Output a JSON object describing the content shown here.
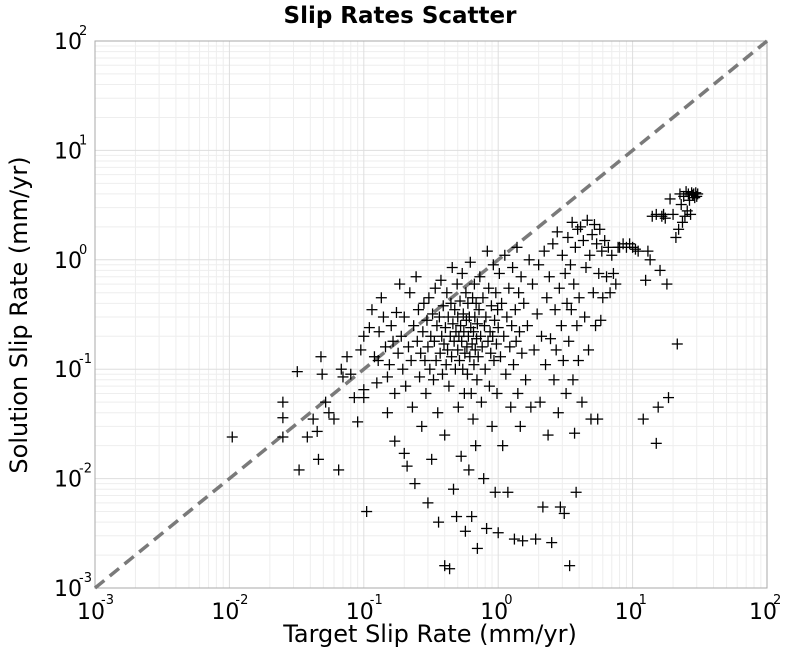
{
  "chart_data": {
    "type": "scatter",
    "title": "Slip Rates Scatter",
    "xlabel": "Target Slip Rate (mm/yr)",
    "ylabel": "Solution Slip Rate (mm/yr)",
    "xscale": "log",
    "yscale": "log",
    "xlim": [
      0.001,
      100
    ],
    "ylim": [
      0.001,
      100
    ],
    "grid": true,
    "marker": "+",
    "marker_color": "#000000",
    "reference_line": {
      "style": "dashed",
      "color": "#7a7a7a",
      "from": [
        0.001,
        0.001
      ],
      "to": [
        100,
        100
      ]
    },
    "x_ticks": [
      {
        "base": "10",
        "exp": "-3"
      },
      {
        "base": "10",
        "exp": "-2"
      },
      {
        "base": "10",
        "exp": "-1"
      },
      {
        "base": "10",
        "exp": "0"
      },
      {
        "base": "10",
        "exp": "1"
      },
      {
        "base": "10",
        "exp": "2"
      }
    ],
    "y_ticks": [
      {
        "base": "10",
        "exp": "-3"
      },
      {
        "base": "10",
        "exp": "-2"
      },
      {
        "base": "10",
        "exp": "-1"
      },
      {
        "base": "10",
        "exp": "0"
      },
      {
        "base": "10",
        "exp": "1"
      },
      {
        "base": "10",
        "exp": "2"
      }
    ],
    "points": [
      [
        0.0105,
        0.024
      ],
      [
        0.025,
        0.05
      ],
      [
        0.025,
        0.036
      ],
      [
        0.025,
        0.024
      ],
      [
        0.032,
        0.095
      ],
      [
        0.033,
        0.012
      ],
      [
        0.038,
        0.024
      ],
      [
        0.042,
        0.035
      ],
      [
        0.045,
        0.027
      ],
      [
        0.046,
        0.015
      ],
      [
        0.048,
        0.13
      ],
      [
        0.049,
        0.09
      ],
      [
        0.052,
        0.05
      ],
      [
        0.055,
        0.04
      ],
      [
        0.06,
        0.035
      ],
      [
        0.065,
        0.012
      ],
      [
        0.068,
        0.1
      ],
      [
        0.07,
        0.085
      ],
      [
        0.075,
        0.13
      ],
      [
        0.08,
        0.09
      ],
      [
        0.085,
        0.055
      ],
      [
        0.09,
        0.033
      ],
      [
        0.095,
        0.15
      ],
      [
        0.1,
        0.065
      ],
      [
        0.1,
        0.2
      ],
      [
        0.1,
        0.055
      ],
      [
        0.105,
        0.005
      ],
      [
        0.11,
        0.24
      ],
      [
        0.115,
        0.35
      ],
      [
        0.12,
        0.13
      ],
      [
        0.125,
        0.075
      ],
      [
        0.128,
        0.12
      ],
      [
        0.13,
        0.22
      ],
      [
        0.135,
        0.45
      ],
      [
        0.14,
        0.3
      ],
      [
        0.145,
        0.16
      ],
      [
        0.15,
        0.085
      ],
      [
        0.15,
        0.04
      ],
      [
        0.155,
        0.11
      ],
      [
        0.16,
        0.25
      ],
      [
        0.165,
        0.18
      ],
      [
        0.17,
        0.06
      ],
      [
        0.17,
        0.022
      ],
      [
        0.175,
        0.33
      ],
      [
        0.18,
        0.14
      ],
      [
        0.185,
        0.6
      ],
      [
        0.19,
        0.2
      ],
      [
        0.195,
        0.1
      ],
      [
        0.2,
        0.017
      ],
      [
        0.2,
        0.3
      ],
      [
        0.205,
        0.07
      ],
      [
        0.21,
        0.013
      ],
      [
        0.215,
        0.16
      ],
      [
        0.22,
        0.5
      ],
      [
        0.225,
        0.12
      ],
      [
        0.23,
        0.045
      ],
      [
        0.235,
        0.25
      ],
      [
        0.24,
        0.009
      ],
      [
        0.245,
        0.7
      ],
      [
        0.25,
        0.18
      ],
      [
        0.255,
        0.35
      ],
      [
        0.26,
        0.085
      ],
      [
        0.265,
        0.14
      ],
      [
        0.27,
        0.03
      ],
      [
        0.275,
        0.22
      ],
      [
        0.28,
        0.4
      ],
      [
        0.285,
        0.12
      ],
      [
        0.29,
        0.06
      ],
      [
        0.295,
        0.28
      ],
      [
        0.3,
        0.006
      ],
      [
        0.3,
        0.16
      ],
      [
        0.305,
        0.45
      ],
      [
        0.31,
        0.1
      ],
      [
        0.315,
        0.2
      ],
      [
        0.32,
        0.015
      ],
      [
        0.325,
        0.32
      ],
      [
        0.33,
        0.08
      ],
      [
        0.335,
        0.18
      ],
      [
        0.34,
        0.55
      ],
      [
        0.345,
        0.12
      ],
      [
        0.35,
        0.25
      ],
      [
        0.355,
        0.04
      ],
      [
        0.36,
        0.004
      ],
      [
        0.365,
        0.3
      ],
      [
        0.37,
        0.14
      ],
      [
        0.375,
        0.65
      ],
      [
        0.38,
        0.2
      ],
      [
        0.385,
        0.09
      ],
      [
        0.39,
        0.38
      ],
      [
        0.395,
        0.17
      ],
      [
        0.4,
        0.025
      ],
      [
        0.4,
        0.0016
      ],
      [
        0.405,
        0.24
      ],
      [
        0.41,
        0.11
      ],
      [
        0.415,
        0.5
      ],
      [
        0.42,
        0.15
      ],
      [
        0.425,
        0.3
      ],
      [
        0.43,
        0.07
      ],
      [
        0.435,
        0.0015
      ],
      [
        0.44,
        0.2
      ],
      [
        0.445,
        0.4
      ],
      [
        0.45,
        0.13
      ],
      [
        0.455,
        0.85
      ],
      [
        0.46,
        0.26
      ],
      [
        0.465,
        0.008
      ],
      [
        0.47,
        0.18
      ],
      [
        0.475,
        0.35
      ],
      [
        0.48,
        0.1
      ],
      [
        0.485,
        0.22
      ],
      [
        0.49,
        0.0045
      ],
      [
        0.495,
        0.6
      ],
      [
        0.5,
        0.15
      ],
      [
        0.5,
        0.3
      ],
      [
        0.505,
        0.045
      ],
      [
        0.51,
        0.2
      ],
      [
        0.515,
        0.12
      ],
      [
        0.52,
        0.42
      ],
      [
        0.525,
        0.25
      ],
      [
        0.53,
        0.016
      ],
      [
        0.535,
        0.18
      ],
      [
        0.54,
        0.75
      ],
      [
        0.545,
        0.1
      ],
      [
        0.55,
        0.32
      ],
      [
        0.555,
        0.22
      ],
      [
        0.56,
        0.06
      ],
      [
        0.565,
        0.14
      ],
      [
        0.57,
        0.0033
      ],
      [
        0.575,
        0.5
      ],
      [
        0.58,
        0.28
      ],
      [
        0.585,
        0.16
      ],
      [
        0.59,
        0.09
      ],
      [
        0.595,
        0.4
      ],
      [
        0.6,
        0.2
      ],
      [
        0.605,
        0.012
      ],
      [
        0.61,
        0.3
      ],
      [
        0.615,
        0.13
      ],
      [
        0.62,
        0.95
      ],
      [
        0.625,
        0.24
      ],
      [
        0.63,
        0.06
      ],
      [
        0.635,
        0.0045
      ],
      [
        0.64,
        0.17
      ],
      [
        0.645,
        0.45
      ],
      [
        0.65,
        0.035
      ],
      [
        0.655,
        0.22
      ],
      [
        0.66,
        0.11
      ],
      [
        0.665,
        0.6
      ],
      [
        0.67,
        0.3
      ],
      [
        0.675,
        0.15
      ],
      [
        0.68,
        0.02
      ],
      [
        0.685,
        0.4
      ],
      [
        0.69,
        0.19
      ],
      [
        0.695,
        0.08
      ],
      [
        0.7,
        0.26
      ],
      [
        0.7,
        0.0023
      ],
      [
        0.71,
        0.13
      ],
      [
        0.72,
        0.35
      ],
      [
        0.73,
        0.7
      ],
      [
        0.74,
        0.2
      ],
      [
        0.75,
        0.05
      ],
      [
        0.76,
        0.16
      ],
      [
        0.77,
        0.45
      ],
      [
        0.78,
        0.01
      ],
      [
        0.79,
        0.25
      ],
      [
        0.8,
        0.1
      ],
      [
        0.81,
        0.3
      ],
      [
        0.82,
        0.0035
      ],
      [
        0.83,
        1.2
      ],
      [
        0.84,
        0.18
      ],
      [
        0.85,
        0.55
      ],
      [
        0.86,
        0.07
      ],
      [
        0.87,
        0.22
      ],
      [
        0.88,
        0.14
      ],
      [
        0.89,
        0.38
      ],
      [
        0.9,
        0.03
      ],
      [
        0.91,
        0.2
      ],
      [
        0.92,
        0.9
      ],
      [
        0.93,
        0.12
      ],
      [
        0.94,
        0.28
      ],
      [
        0.95,
        0.0075
      ],
      [
        0.96,
        0.5
      ],
      [
        0.97,
        0.17
      ],
      [
        0.98,
        0.06
      ],
      [
        0.99,
        0.35
      ],
      [
        1.0,
        0.24
      ],
      [
        1.0,
        0.0032
      ],
      [
        1.02,
        0.75
      ],
      [
        1.04,
        0.13
      ],
      [
        1.06,
        0.4
      ],
      [
        1.08,
        0.02
      ],
      [
        1.1,
        0.2
      ],
      [
        1.12,
        1.1
      ],
      [
        1.14,
        0.09
      ],
      [
        1.16,
        0.3
      ],
      [
        1.18,
        0.0075
      ],
      [
        1.2,
        0.55
      ],
      [
        1.22,
        0.16
      ],
      [
        1.24,
        0.045
      ],
      [
        1.26,
        0.25
      ],
      [
        1.28,
        0.85
      ],
      [
        1.3,
        0.11
      ],
      [
        1.32,
        0.0028
      ],
      [
        1.34,
        0.35
      ],
      [
        1.36,
        0.18
      ],
      [
        1.38,
        1.3
      ],
      [
        1.4,
        0.06
      ],
      [
        1.42,
        0.5
      ],
      [
        1.44,
        0.22
      ],
      [
        1.46,
        0.03
      ],
      [
        1.48,
        0.7
      ],
      [
        1.5,
        0.14
      ],
      [
        1.52,
        0.0027
      ],
      [
        1.55,
        0.4
      ],
      [
        1.6,
        0.08
      ],
      [
        1.65,
        0.25
      ],
      [
        1.7,
        1.0
      ],
      [
        1.75,
        0.045
      ],
      [
        1.8,
        0.6
      ],
      [
        1.85,
        0.15
      ],
      [
        1.9,
        0.0028
      ],
      [
        1.95,
        0.32
      ],
      [
        2.0,
        0.9
      ],
      [
        2.05,
        0.05
      ],
      [
        2.1,
        0.2
      ],
      [
        2.15,
        0.0055
      ],
      [
        2.2,
        1.2
      ],
      [
        2.25,
        0.11
      ],
      [
        2.3,
        0.45
      ],
      [
        2.35,
        0.025
      ],
      [
        2.4,
        0.7
      ],
      [
        2.45,
        0.19
      ],
      [
        2.5,
        0.0026
      ],
      [
        2.55,
        1.4
      ],
      [
        2.6,
        0.08
      ],
      [
        2.65,
        0.35
      ],
      [
        2.7,
        0.15
      ],
      [
        2.75,
        1.8
      ],
      [
        2.8,
        0.04
      ],
      [
        2.85,
        0.55
      ],
      [
        2.9,
        0.0055
      ],
      [
        2.95,
        0.25
      ],
      [
        3.0,
        1.1
      ],
      [
        3.05,
        0.12
      ],
      [
        3.1,
        0.0048
      ],
      [
        3.15,
        0.75
      ],
      [
        3.2,
        0.06
      ],
      [
        3.25,
        0.4
      ],
      [
        3.3,
        1.6
      ],
      [
        3.35,
        0.18
      ],
      [
        3.4,
        0.0016
      ],
      [
        3.45,
        0.9
      ],
      [
        3.5,
        0.35
      ],
      [
        3.55,
        2.2
      ],
      [
        3.6,
        0.08
      ],
      [
        3.65,
        0.6
      ],
      [
        3.7,
        0.026
      ],
      [
        3.75,
        1.3
      ],
      [
        3.8,
        0.0075
      ],
      [
        3.85,
        0.25
      ],
      [
        3.9,
        1.9
      ],
      [
        3.95,
        0.12
      ],
      [
        4.0,
        0.45
      ],
      [
        4.1,
        2.0
      ],
      [
        4.2,
        0.05
      ],
      [
        4.3,
        1.5
      ],
      [
        4.4,
        0.3
      ],
      [
        4.5,
        0.85
      ],
      [
        4.6,
        2.3
      ],
      [
        4.7,
        0.15
      ],
      [
        4.8,
        1.1
      ],
      [
        4.9,
        0.035
      ],
      [
        5.0,
        1.7
      ],
      [
        5.1,
        0.5
      ],
      [
        5.2,
        2.1
      ],
      [
        5.3,
        0.25
      ],
      [
        5.4,
        1.4
      ],
      [
        5.5,
        0.035
      ],
      [
        5.6,
        0.75
      ],
      [
        5.7,
        1.9
      ],
      [
        5.8,
        0.28
      ],
      [
        5.9,
        1.2
      ],
      [
        6.0,
        0.45
      ],
      [
        6.2,
        1.5
      ],
      [
        6.4,
        0.7
      ],
      [
        6.6,
        1.3
      ],
      [
        6.8,
        0.5
      ],
      [
        7.0,
        1.1
      ],
      [
        7.2,
        0.75
      ],
      [
        7.5,
        0.6
      ],
      [
        7.8,
        1.3
      ],
      [
        8.0,
        1.3
      ],
      [
        8.5,
        1.4
      ],
      [
        9.0,
        1.3
      ],
      [
        9.5,
        1.4
      ],
      [
        10.0,
        1.3
      ],
      [
        10.5,
        1.25
      ],
      [
        11.0,
        1.2
      ],
      [
        12.0,
        0.035
      ],
      [
        12.5,
        0.65
      ],
      [
        13.0,
        1.2
      ],
      [
        13.5,
        1.0
      ],
      [
        14.0,
        2.5
      ],
      [
        15.0,
        0.021
      ],
      [
        15.0,
        2.6
      ],
      [
        15.5,
        0.045
      ],
      [
        16.0,
        0.8
      ],
      [
        16.5,
        2.5
      ],
      [
        17.0,
        2.6
      ],
      [
        17.5,
        2.4
      ],
      [
        18.0,
        0.6
      ],
      [
        18.5,
        0.055
      ],
      [
        19.0,
        3.6
      ],
      [
        20.0,
        2.6
      ],
      [
        21.0,
        1.6
      ],
      [
        21.5,
        0.17
      ],
      [
        22.0,
        1.9
      ],
      [
        22.5,
        4.0
      ],
      [
        23.0,
        3.2
      ],
      [
        23.5,
        2.2
      ],
      [
        24.0,
        3.8
      ],
      [
        24.5,
        2.5
      ],
      [
        25.0,
        4.2
      ],
      [
        25.5,
        2.8
      ],
      [
        26.0,
        4.0
      ],
      [
        26.5,
        3.5
      ],
      [
        27.0,
        2.6
      ],
      [
        27.5,
        4.1
      ],
      [
        28.0,
        3.9
      ],
      [
        28.5,
        4.0
      ],
      [
        29.0,
        3.7
      ],
      [
        29.5,
        4.1
      ],
      [
        30.0,
        3.8
      ],
      [
        30.5,
        4.0
      ]
    ]
  }
}
